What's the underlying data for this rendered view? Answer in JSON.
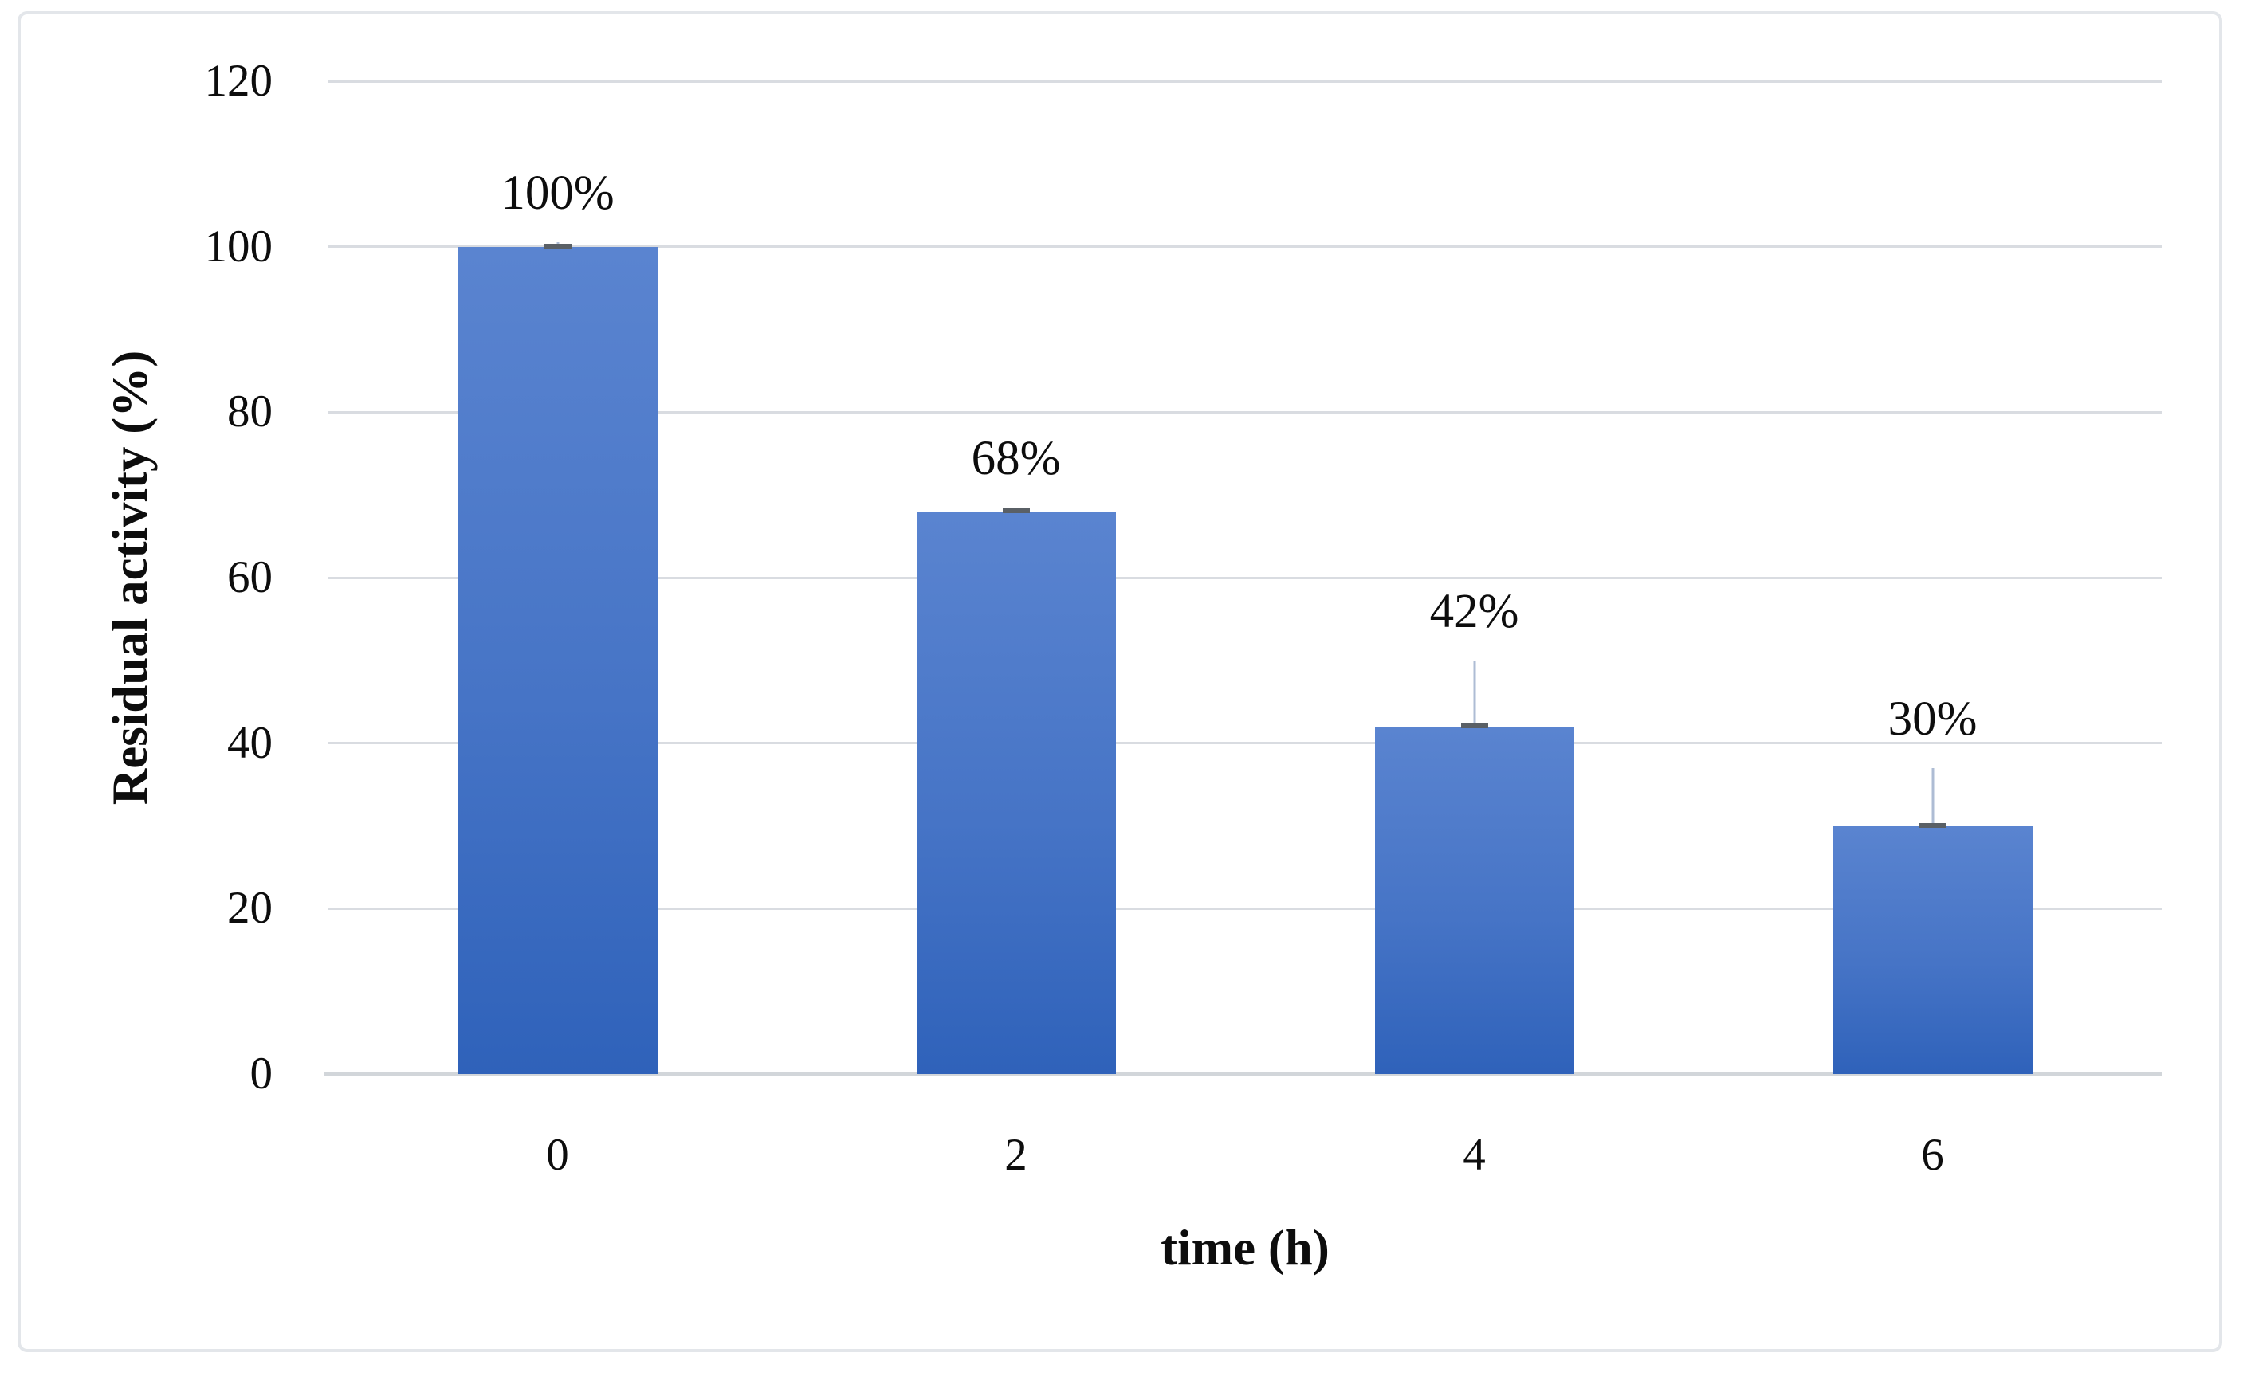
{
  "figure": {
    "background_color": "#ffffff",
    "border_color": "#e3e6ea"
  },
  "chart_data": {
    "type": "bar",
    "categories": [
      "0",
      "2",
      "4",
      "6"
    ],
    "values": [
      100,
      68,
      42,
      30
    ],
    "data_labels": [
      "100%",
      "68%",
      "42%",
      "30%"
    ],
    "errors_plus": [
      0.5,
      0.5,
      8,
      7
    ],
    "title": "",
    "xlabel": "time (h)",
    "ylabel": "Residual activity (%)",
    "ylim": [
      0,
      120
    ],
    "yticks": [
      0,
      20,
      40,
      60,
      80,
      100,
      120
    ],
    "grid": true,
    "legend_position": "none",
    "bar_color_top": "#5a84d0",
    "bar_color_bottom": "#2f62ba",
    "gridline_color": "#d9dce1",
    "axis_line_color": "#d2d6da",
    "error_cap_color": "#5a6066",
    "error_whisker_color": "#aebcd4"
  }
}
